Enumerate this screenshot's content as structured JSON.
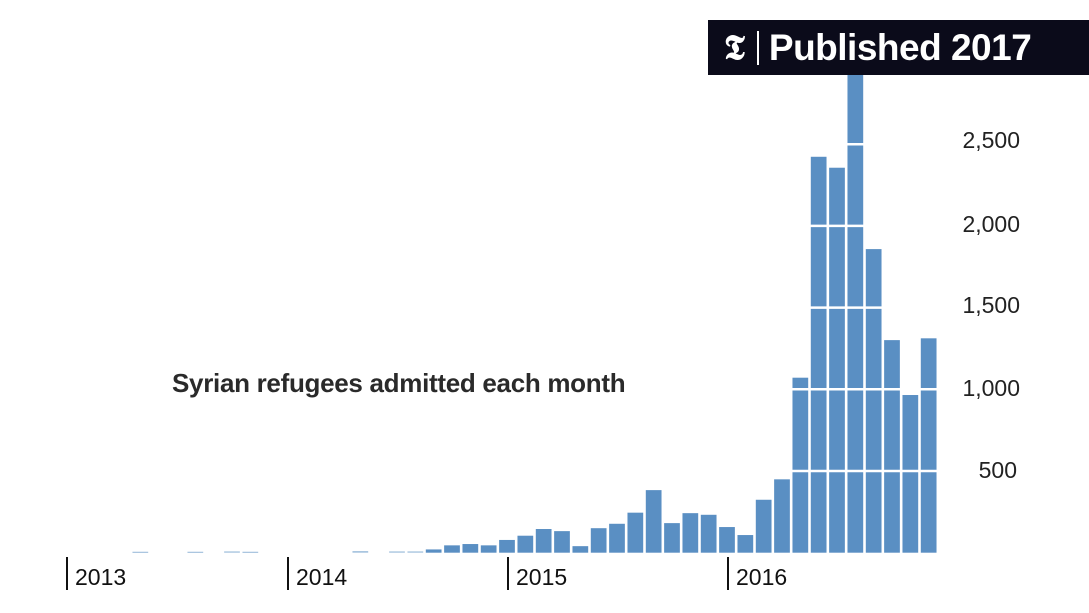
{
  "header": {
    "logo": "𝕿",
    "logo_icon": "nyt-logo-icon",
    "label": "Published 2017"
  },
  "chart_data": {
    "type": "bar",
    "title": "Syrian refugees admitted each month",
    "xlabel": "",
    "ylabel": "",
    "ylim": [
      0,
      2950
    ],
    "yticks": [
      500,
      1000,
      1500,
      2000,
      2500
    ],
    "ytick_labels": [
      "500",
      "1,000",
      "1,500",
      "2,000",
      "2,500"
    ],
    "grid": "horizontal white lines through bars",
    "bar_color": "#5a8fc3",
    "year_ticks": [
      "2013",
      "2014",
      "2015",
      "2016"
    ],
    "categories": [
      "2013-01",
      "2013-02",
      "2013-03",
      "2013-04",
      "2013-05",
      "2013-06",
      "2013-07",
      "2013-08",
      "2013-09",
      "2013-10",
      "2013-11",
      "2013-12",
      "2014-01",
      "2014-02",
      "2014-03",
      "2014-04",
      "2014-05",
      "2014-06",
      "2014-07",
      "2014-08",
      "2014-09",
      "2014-10",
      "2014-11",
      "2014-12",
      "2015-01",
      "2015-02",
      "2015-03",
      "2015-04",
      "2015-05",
      "2015-06",
      "2015-07",
      "2015-08",
      "2015-09",
      "2015-10",
      "2015-11",
      "2015-12",
      "2016-01",
      "2016-02",
      "2016-03",
      "2016-04",
      "2016-05",
      "2016-06",
      "2016-07",
      "2016-08",
      "2016-09",
      "2016-10",
      "2016-11",
      "2016-12"
    ],
    "values": [
      0,
      0,
      0,
      0,
      6,
      0,
      0,
      6,
      0,
      8,
      6,
      0,
      0,
      0,
      0,
      0,
      10,
      0,
      8,
      8,
      20,
      45,
      53,
      45,
      78,
      104,
      145,
      132,
      40,
      150,
      177,
      245,
      383,
      181,
      242,
      232,
      157,
      108,
      324,
      449,
      1071,
      2423,
      2356,
      3000,
      1858,
      1301,
      965,
      1312
    ]
  }
}
